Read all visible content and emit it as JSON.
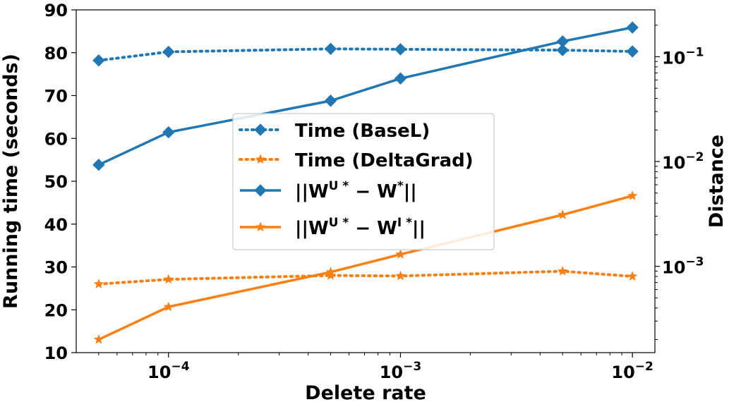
{
  "chart_data": {
    "type": "line",
    "xlabel": "Delete rate",
    "ylabel_left": "Running time (seconds)",
    "ylabel_right": "Distance",
    "x_scale": "log",
    "xlim": [
      4e-05,
      0.0125
    ],
    "ylim_left": [
      10,
      90
    ],
    "ylim_right": [
      0.00015,
      0.28
    ],
    "x_ticks": [
      {
        "value": 0.0001,
        "base": "10",
        "exp": "−4"
      },
      {
        "value": 0.001,
        "base": "10",
        "exp": "−3"
      },
      {
        "value": 0.01,
        "base": "10",
        "exp": "−2"
      }
    ],
    "y_ticks_left": [
      "10",
      "20",
      "30",
      "40",
      "50",
      "60",
      "70",
      "80",
      "90"
    ],
    "y_ticks_right": [
      {
        "value": 0.001,
        "base": "10",
        "exp": "−3"
      },
      {
        "value": 0.01,
        "base": "10",
        "exp": "−2"
      },
      {
        "value": 0.1,
        "base": "10",
        "exp": "−1"
      }
    ],
    "x": [
      5e-05,
      0.0001,
      0.0005,
      0.001,
      0.005,
      0.01
    ],
    "series": [
      {
        "name": "Time (BaseL)",
        "axis": "left",
        "style": "dotted",
        "marker": "diamond",
        "color": "#1f77b4",
        "values": [
          78.2,
          80.2,
          80.9,
          80.8,
          80.6,
          80.3
        ]
      },
      {
        "name": "Time (DeltaGrad)",
        "axis": "left",
        "style": "dotted",
        "marker": "star",
        "color": "#ff7f0e",
        "values": [
          26.0,
          27.1,
          28.0,
          27.9,
          29.0,
          27.8
        ]
      },
      {
        "name": "||W^{U*} − W^{*}||",
        "axis": "right",
        "style": "solid",
        "marker": "diamond",
        "color": "#1f77b4",
        "values": [
          0.0093,
          0.019,
          0.038,
          0.062,
          0.14,
          0.19
        ]
      },
      {
        "name": "||W^{U*} − W^{I*}||",
        "axis": "right",
        "style": "solid",
        "marker": "star",
        "color": "#ff7f0e",
        "values": [
          0.0002,
          0.00041,
          0.00088,
          0.0013,
          0.0031,
          0.0047
        ]
      }
    ],
    "legend": {
      "position": "center",
      "entries": [
        {
          "text": "Time (BaseL)"
        },
        {
          "text": "Time (DeltaGrad)"
        },
        {
          "parts": [
            [
              "||W",
              ""
            ],
            [
              "U *",
              "sup"
            ],
            [
              " − W",
              ""
            ],
            [
              "*",
              "sup"
            ],
            [
              "||",
              ""
            ]
          ]
        },
        {
          "parts": [
            [
              "||W",
              ""
            ],
            [
              "U *",
              "sup"
            ],
            [
              " − W",
              ""
            ],
            [
              "I *",
              "sup"
            ],
            [
              "||",
              ""
            ]
          ]
        }
      ]
    },
    "grid": false
  }
}
